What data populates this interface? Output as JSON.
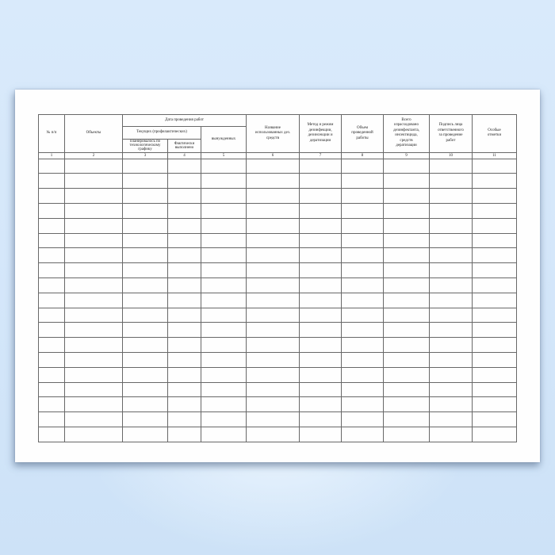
{
  "document": {
    "kind": "blank-journal-form-page"
  },
  "table": {
    "header": {
      "col1": "№ п/п",
      "col2": "Объекты",
      "date_group": "Дата проведения работ",
      "current_group": "Текущих (профилактических)",
      "planned": "планировалось по\nтехнологическому\nграфику",
      "actual": "Фактически\nвыполнено",
      "forced": "вынужденных",
      "col6": "Название\nиспользованных дез.\nсредств",
      "col7": "Метод и режим\nдезинфекции,\nдезинсекции и\nдератизации",
      "col8": "Объем\nпроведенной\nработы",
      "col9": "Всего\nизрасходовано\nдезинфектанта,\nинсектицида,\nсредств\nдератизации",
      "col10": "Подпись лица\nответственного\nза проведение\nработ",
      "col11": "Особые\nотметки"
    },
    "column_numbers": [
      "1",
      "2",
      "3",
      "4",
      "5",
      "6",
      "7",
      "8",
      "9",
      "10",
      "11"
    ],
    "column_count": 11,
    "body_row_count": 19
  },
  "colors": {
    "background_blue": "#d5e7fa",
    "page_white": "#fefefe",
    "grid_line": "#686868",
    "text": "#1f1f1f"
  }
}
